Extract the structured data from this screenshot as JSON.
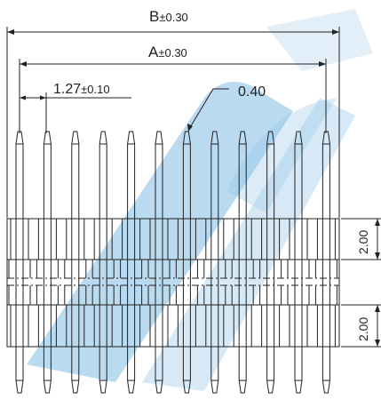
{
  "dimensions": {
    "b_label": "B",
    "b_tolerance": "±0.30",
    "a_label": "A",
    "a_tolerance": "±0.30",
    "pitch_value": "1.27",
    "pitch_tolerance": "±0.10",
    "pin_width": "0.40",
    "housing_height_top": "2.00",
    "housing_height_bottom": "2.00"
  },
  "connector": {
    "pin_count": 12
  },
  "colors": {
    "line": "#222222",
    "watermark": "#2f8fd0",
    "background": "#ffffff"
  }
}
